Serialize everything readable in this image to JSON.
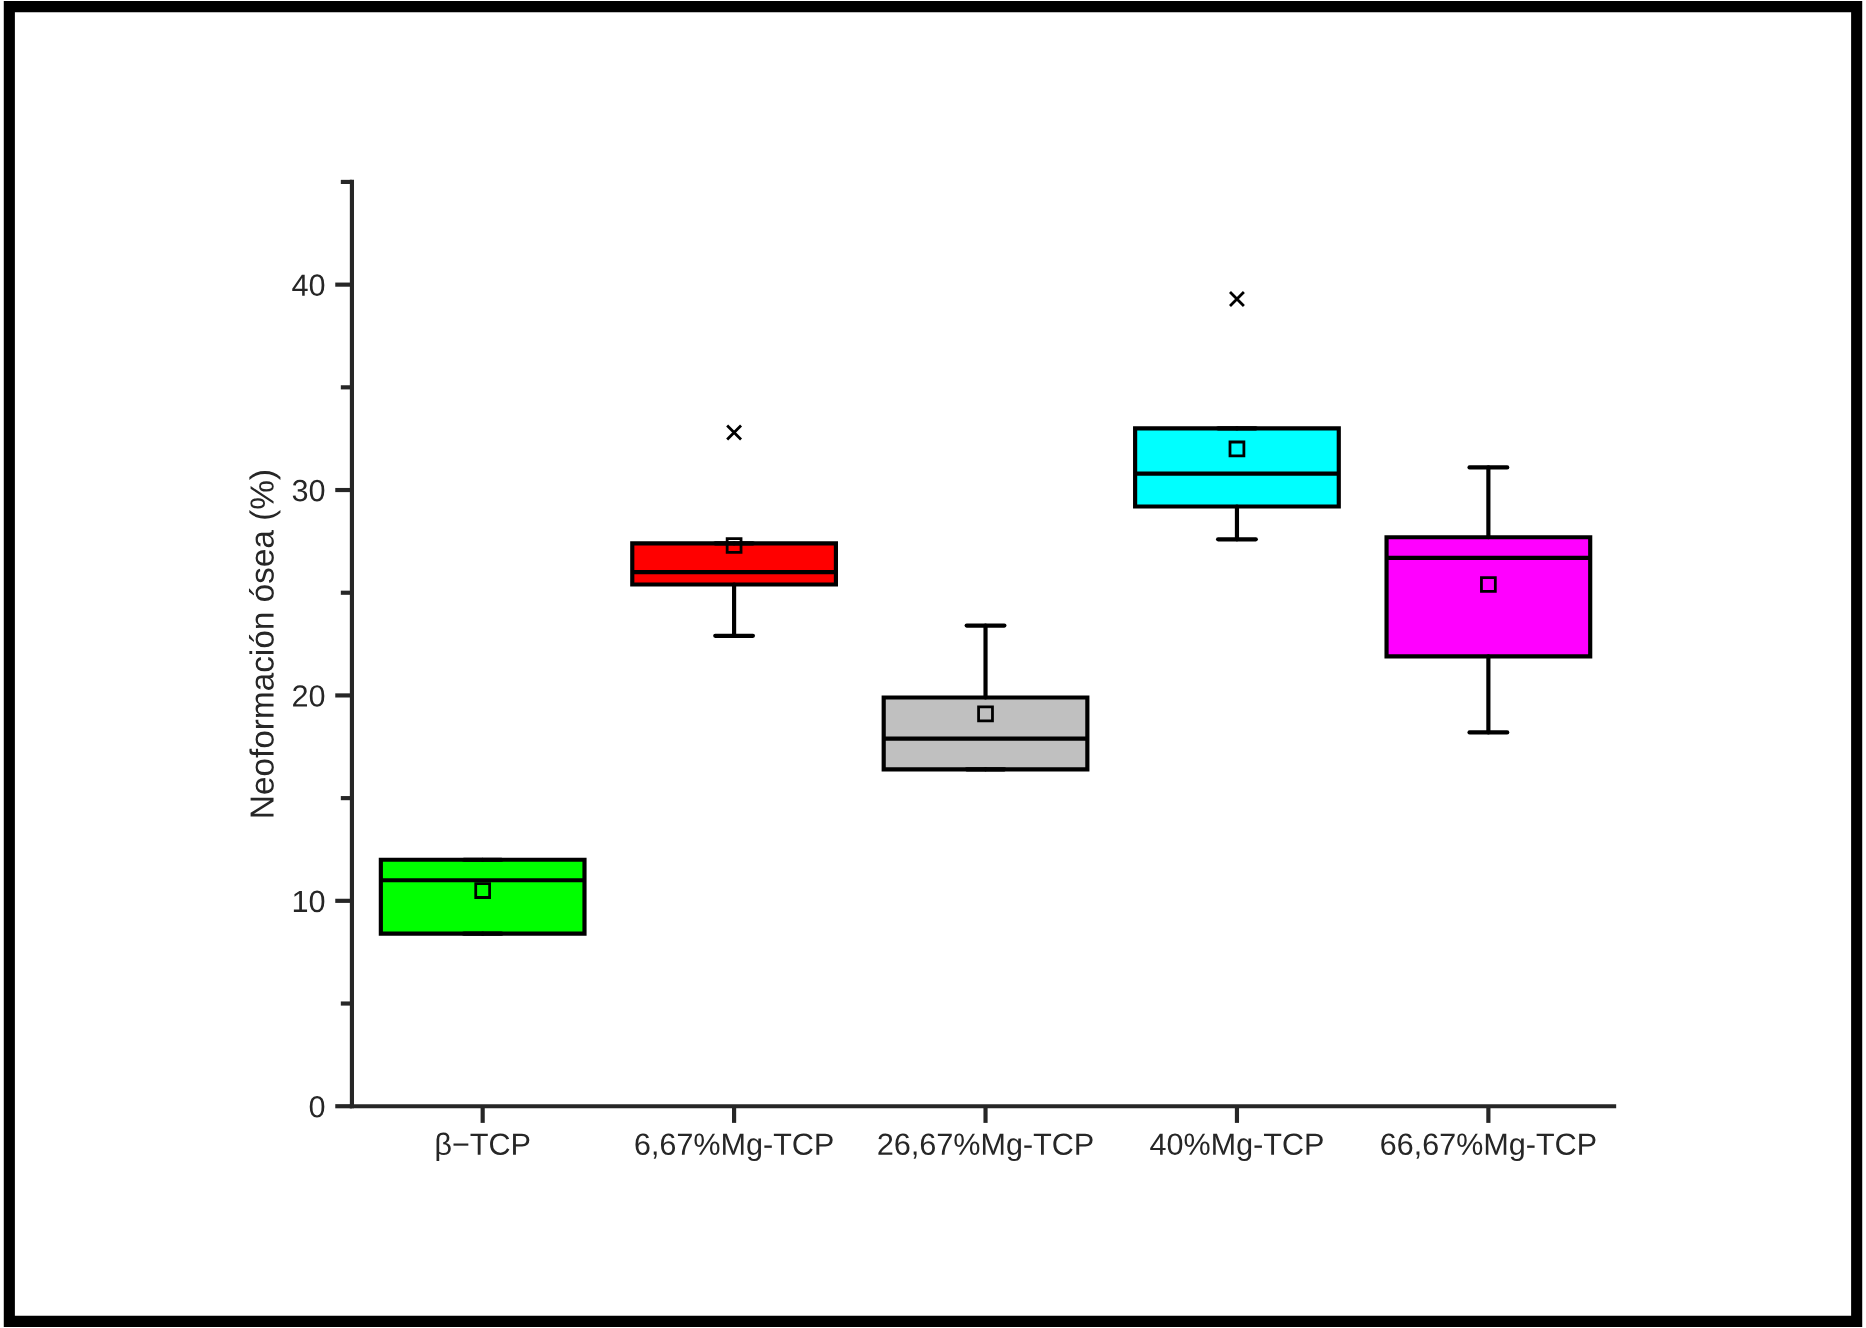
{
  "chart_data": {
    "type": "box",
    "ylabel": "Neoformación ósea (%)",
    "categories": [
      "β−TCP",
      "6,67%Mg-TCP",
      "26,67%Mg-TCP",
      "40%Mg-TCP",
      "66,67%Mg-TCP"
    ],
    "colors": [
      "#00ff00",
      "#ff0000",
      "#c0c0c0",
      "#00ffff",
      "#ff00ff"
    ],
    "boxes": [
      {
        "low": 8.4,
        "q1": 8.4,
        "median": 11.0,
        "q3": 12.0,
        "high": 12.0,
        "mean": 10.5
      },
      {
        "low": 22.9,
        "q1": 25.4,
        "median": 26.0,
        "q3": 27.4,
        "high": 27.4,
        "mean": 27.3,
        "outliers": [
          32.8
        ]
      },
      {
        "low": 16.4,
        "q1": 16.4,
        "median": 17.9,
        "q3": 19.9,
        "high": 23.4,
        "mean": 19.1
      },
      {
        "low": 27.6,
        "q1": 29.2,
        "median": 30.8,
        "q3": 33.0,
        "high": 33.0,
        "mean": 32.0,
        "outliers": [
          39.3
        ]
      },
      {
        "low": 18.2,
        "q1": 21.9,
        "median": 26.7,
        "q3": 27.7,
        "high": 31.1,
        "mean": 25.4
      }
    ],
    "ylim": [
      0,
      45
    ],
    "yticks": [
      0,
      10,
      20,
      30,
      40
    ],
    "grid": false,
    "legend": false
  }
}
